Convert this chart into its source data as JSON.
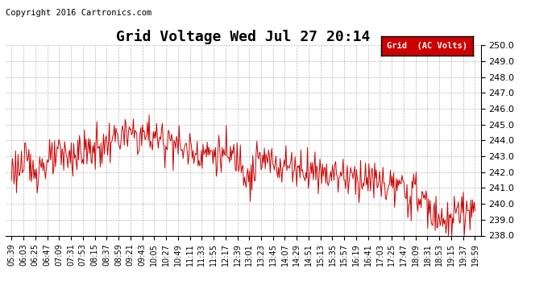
{
  "title": "Grid Voltage Wed Jul 27 20:14",
  "copyright": "Copyright 2016 Cartronics.com",
  "legend_label": "Grid  (AC Volts)",
  "legend_bg": "#cc0000",
  "legend_text_color": "#ffffff",
  "line_color": "#cc0000",
  "background_color": "#ffffff",
  "grid_color": "#bbbbbb",
  "ylim": [
    238.0,
    250.0
  ],
  "yticks": [
    238.0,
    239.0,
    240.0,
    241.0,
    242.0,
    243.0,
    244.0,
    245.0,
    246.0,
    247.0,
    248.0,
    249.0,
    250.0
  ],
  "xtick_labels": [
    "05:39",
    "06:03",
    "06:25",
    "06:47",
    "07:09",
    "07:31",
    "07:53",
    "08:15",
    "08:37",
    "08:59",
    "09:21",
    "09:43",
    "10:05",
    "10:27",
    "10:49",
    "11:11",
    "11:33",
    "11:55",
    "12:17",
    "12:39",
    "13:01",
    "13:23",
    "13:45",
    "14:07",
    "14:29",
    "14:51",
    "15:13",
    "15:35",
    "15:57",
    "16:19",
    "16:41",
    "17:03",
    "17:25",
    "17:47",
    "18:09",
    "18:31",
    "18:53",
    "19:15",
    "19:37",
    "19:59"
  ],
  "title_fontsize": 13,
  "tick_fontsize": 7,
  "ytick_fontsize": 8,
  "copyright_fontsize": 7.5
}
